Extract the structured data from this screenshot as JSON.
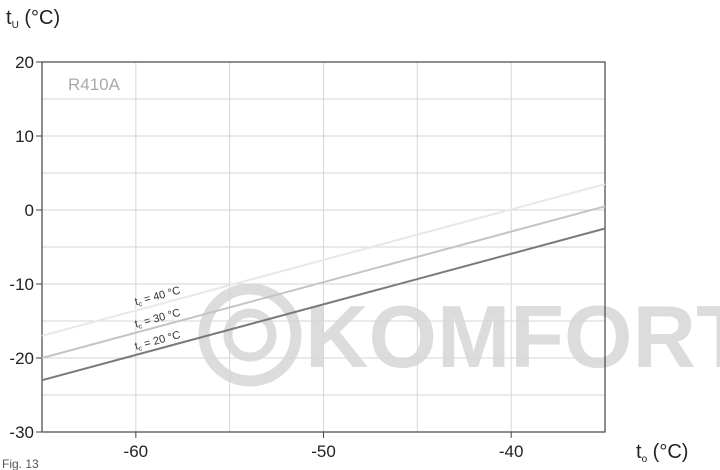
{
  "chart_data": {
    "type": "line",
    "refrigerant_label": "R410A",
    "xlabel": {
      "main": "t",
      "sub": "o",
      "unit": " (°C)"
    },
    "ylabel": {
      "main": "t",
      "sub": "U",
      "unit": " (°C)"
    },
    "xlim": [
      -65,
      -35
    ],
    "ylim": [
      -30,
      20
    ],
    "xticks": [
      -60,
      -50,
      -40
    ],
    "yticks": [
      20,
      10,
      0,
      -10,
      -20,
      -30
    ],
    "grid": true,
    "series": [
      {
        "name": {
          "main": "t",
          "sub": "c",
          "rest": " = 40 °C"
        },
        "color": "#e8e8e8",
        "x": [
          -65,
          -35
        ],
        "y": [
          -17,
          3.5
        ]
      },
      {
        "name": {
          "main": "t",
          "sub": "c",
          "rest": " = 30 °C"
        },
        "color": "#c4c4c4",
        "x": [
          -65,
          -35
        ],
        "y": [
          -20,
          0.5
        ]
      },
      {
        "name": {
          "main": "t",
          "sub": "c",
          "rest": " = 20 °C"
        },
        "color": "#7a7a7a",
        "x": [
          -65,
          -35
        ],
        "y": [
          -23,
          -2.5
        ]
      }
    ],
    "watermark": "KOMFORT",
    "caption": "Fig. 13"
  }
}
